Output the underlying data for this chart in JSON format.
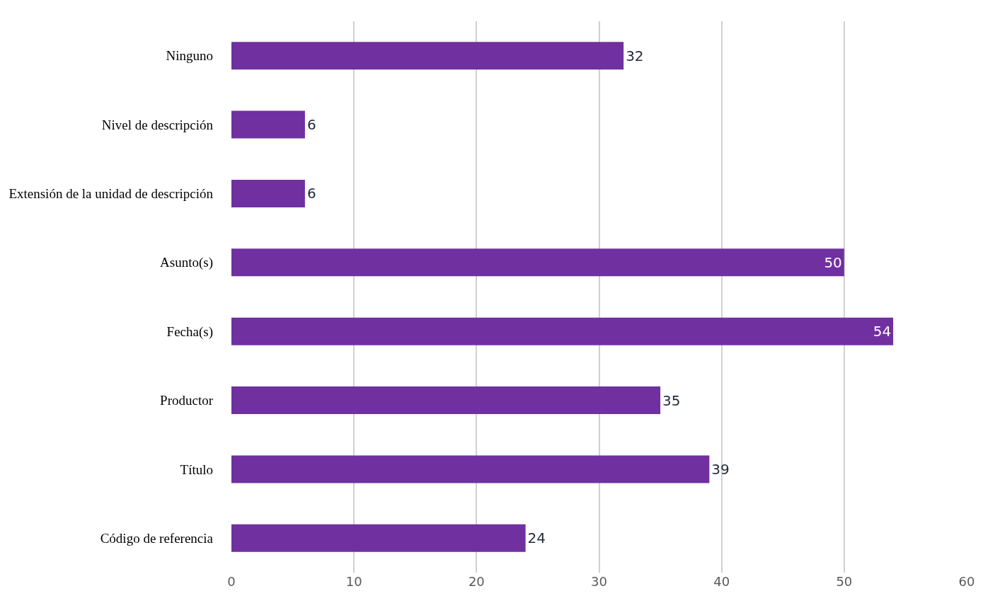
{
  "chart_data": {
    "type": "bar",
    "orientation": "horizontal",
    "categories": [
      "Ninguno",
      "Nivel de descripción",
      "Extensión de la unidad de descripción",
      "Asunto(s)",
      "Fecha(s)",
      "Productor",
      "Título",
      "Código de referencia"
    ],
    "values": [
      32,
      6,
      6,
      50,
      54,
      35,
      39,
      24
    ],
    "color": "#7030a0",
    "data_labels": true,
    "grid": "x",
    "xlim": [
      0,
      60
    ],
    "xticks": [
      0,
      10,
      20,
      30,
      40,
      50,
      60
    ]
  }
}
